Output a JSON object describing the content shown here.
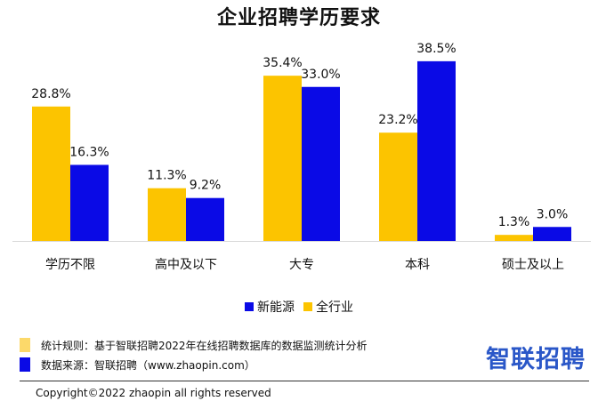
{
  "title": "企业招聘学历要求",
  "legend": [
    {
      "label": "新能源",
      "color": "#0a0ae6"
    },
    {
      "label": "全行业",
      "color": "#fcc400"
    }
  ],
  "chart_data": {
    "type": "bar",
    "title": "企业招聘学历要求",
    "categories": [
      "学历不限",
      "高中及以下",
      "大专",
      "本科",
      "硕士及以上"
    ],
    "series": [
      {
        "name": "全行业",
        "color": "#fcc400",
        "values": [
          28.8,
          11.3,
          35.4,
          23.2,
          1.3
        ],
        "labels": [
          "28.8%",
          "11.3%",
          "35.4%",
          "23.2%",
          "1.3%"
        ]
      },
      {
        "name": "新能源",
        "color": "#0a0ae6",
        "values": [
          16.3,
          9.2,
          33.0,
          38.5,
          3.0
        ],
        "labels": [
          "16.3%",
          "9.2%",
          "33.0%",
          "38.5%",
          "3.0%"
        ]
      }
    ],
    "ylim": [
      0,
      45
    ],
    "grid": false,
    "legend_position": "bottom"
  },
  "notes": [
    {
      "text": "统计规则：基于智联招聘2022年在线招聘数据库的数据监测统计分析",
      "color": "#fcd96a"
    },
    {
      "text": "数据来源：智联招聘（www.zhaopin.com）",
      "color": "#0a0ae6"
    }
  ],
  "logo": "智联招聘",
  "copyright": "Copyright©2022 zhaopin all rights reserved"
}
